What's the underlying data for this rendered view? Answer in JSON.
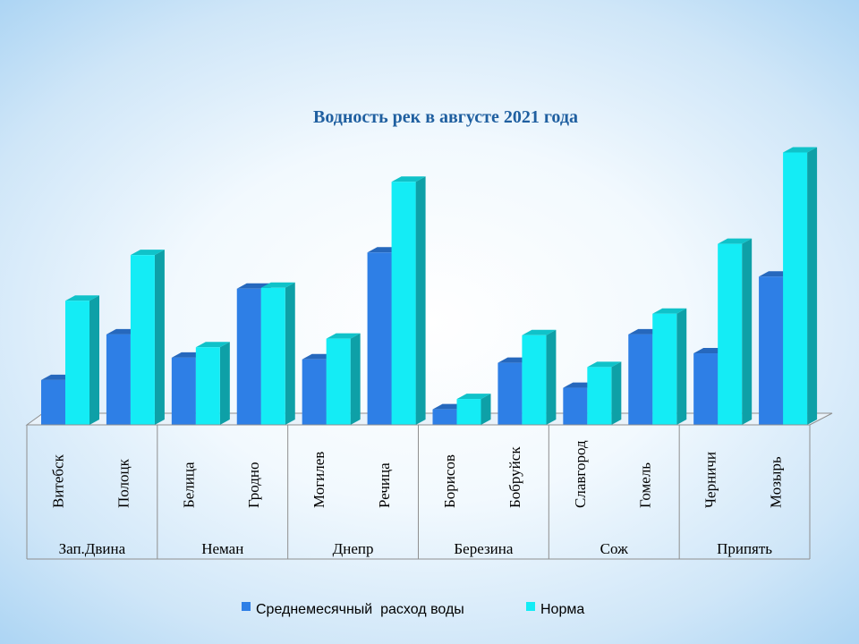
{
  "colors": {
    "series1": "#2e7fe6",
    "series2": "#14ecf5",
    "title": "#1f5fa0"
  },
  "chart_data": {
    "type": "bar",
    "title": "Водность рек в августе 2021 года",
    "categories": [
      "Витебск",
      "Полоцк",
      "Белица",
      "Гродно",
      "Могилев",
      "Речица",
      "Борисов",
      "Бобруйск",
      "Славгород",
      "Гомель",
      "Черничи",
      "Мозырь"
    ],
    "groups": [
      {
        "name": "Зап.Двина",
        "span": 2
      },
      {
        "name": "Неман",
        "span": 2
      },
      {
        "name": "Днепр",
        "span": 2
      },
      {
        "name": "Березина",
        "span": 2
      },
      {
        "name": "Сож",
        "span": 2
      },
      {
        "name": "Припять",
        "span": 2
      }
    ],
    "series": [
      {
        "name": "Среднемесячный  расход воды",
        "values": [
          52,
          105,
          78,
          158,
          76,
          200,
          18,
          72,
          43,
          105,
          83,
          172
        ]
      },
      {
        "name": "Норма",
        "values": [
          144,
          197,
          90,
          159,
          100,
          282,
          30,
          104,
          67,
          129,
          210,
          316
        ]
      }
    ],
    "ylim": [
      0,
      330
    ],
    "grid": false,
    "legend": "bottom"
  }
}
